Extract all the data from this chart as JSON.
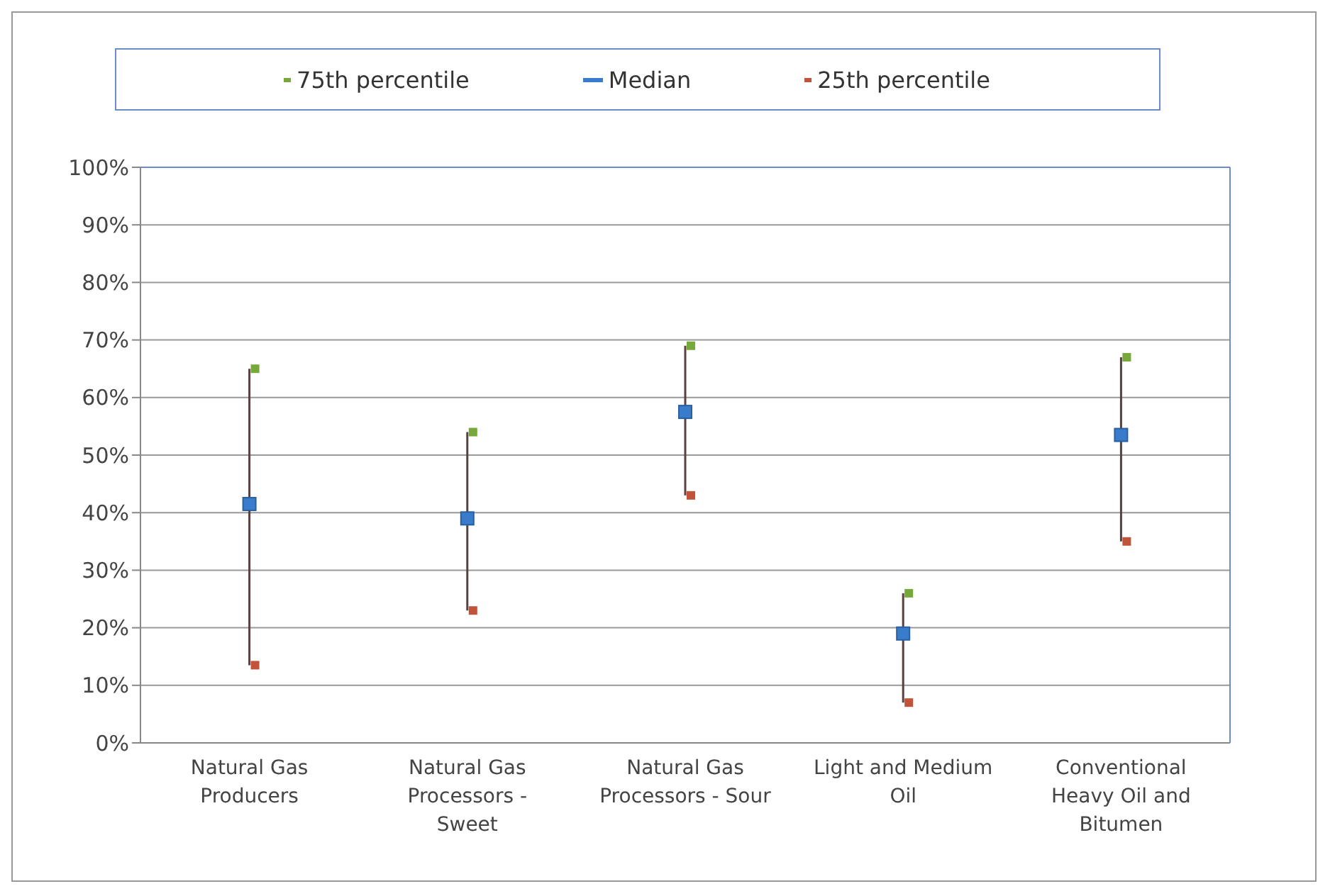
{
  "chart_data": {
    "type": "scatter",
    "categories": [
      "Natural Gas Producers",
      "Natural Gas Processors - Sweet",
      "Natural Gas Processors - Sour",
      "Light and Medium Oil",
      "Conventional Heavy Oil and Bitumen"
    ],
    "series": [
      {
        "name": "75th percentile",
        "color": "#77a83a",
        "values": [
          65,
          54,
          69,
          26,
          67
        ]
      },
      {
        "name": "Median",
        "color": "#3a7ccc",
        "values": [
          41.5,
          39,
          57.5,
          19,
          53.5
        ],
        "errors": [
          [
            13.5,
            65
          ],
          [
            23,
            54
          ],
          [
            43,
            69
          ],
          [
            7,
            26
          ],
          [
            35,
            67
          ]
        ]
      },
      {
        "name": "25th percentile",
        "color": "#c0533a",
        "values": [
          13.5,
          23,
          43,
          7,
          35
        ]
      }
    ],
    "ylim": [
      0,
      100
    ],
    "yticks": [
      {
        "value": 0,
        "label": "0%"
      },
      {
        "value": 10,
        "label": "10%"
      },
      {
        "value": 20,
        "label": "20%"
      },
      {
        "value": 30,
        "label": "30%"
      },
      {
        "value": 40,
        "label": "40%"
      },
      {
        "value": 50,
        "label": "50%"
      },
      {
        "value": 60,
        "label": "60%"
      },
      {
        "value": 70,
        "label": "70%"
      },
      {
        "value": 80,
        "label": "80%"
      },
      {
        "value": 90,
        "label": "90%"
      },
      {
        "value": 100,
        "label": "100%"
      }
    ],
    "grid": "y",
    "legend": "top",
    "marker": "square"
  }
}
